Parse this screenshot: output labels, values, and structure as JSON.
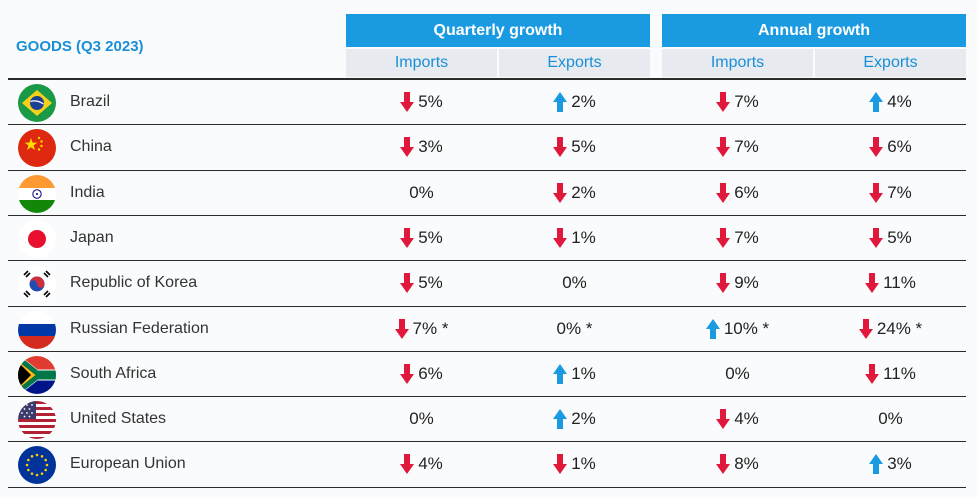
{
  "header": {
    "goods_label": "GOODS (Q3 2023)",
    "quarterly_label": "Quarterly growth",
    "annual_label": "Annual growth",
    "imports_label": "Imports",
    "exports_label": "Exports"
  },
  "colors": {
    "accent": "#1a9ae0",
    "down": "#e0183c",
    "up": "#1a9ae0",
    "subheader_bg": "#e7ebef"
  },
  "rows": [
    {
      "country": "Brazil",
      "flag": "brazil-flag",
      "q_imp": {
        "value": "5%",
        "dir": "down"
      },
      "q_exp": {
        "value": "2%",
        "dir": "up"
      },
      "a_imp": {
        "value": "7%",
        "dir": "down"
      },
      "a_exp": {
        "value": "4%",
        "dir": "up"
      }
    },
    {
      "country": "China",
      "flag": "china-flag",
      "q_imp": {
        "value": "3%",
        "dir": "down"
      },
      "q_exp": {
        "value": "5%",
        "dir": "down"
      },
      "a_imp": {
        "value": "7%",
        "dir": "down"
      },
      "a_exp": {
        "value": "6%",
        "dir": "down"
      }
    },
    {
      "country": "India",
      "flag": "india-flag",
      "q_imp": {
        "value": "0%",
        "dir": "none"
      },
      "q_exp": {
        "value": "2%",
        "dir": "down"
      },
      "a_imp": {
        "value": "6%",
        "dir": "down"
      },
      "a_exp": {
        "value": "7%",
        "dir": "down"
      }
    },
    {
      "country": "Japan",
      "flag": "japan-flag",
      "q_imp": {
        "value": "5%",
        "dir": "down"
      },
      "q_exp": {
        "value": "1%",
        "dir": "down"
      },
      "a_imp": {
        "value": "7%",
        "dir": "down"
      },
      "a_exp": {
        "value": "5%",
        "dir": "down"
      }
    },
    {
      "country": "Republic of Korea",
      "flag": "korea-flag",
      "q_imp": {
        "value": "5%",
        "dir": "down"
      },
      "q_exp": {
        "value": "0%",
        "dir": "none"
      },
      "a_imp": {
        "value": "9%",
        "dir": "down"
      },
      "a_exp": {
        "value": "11%",
        "dir": "down"
      }
    },
    {
      "country": "Russian Federation",
      "flag": "russia-flag",
      "q_imp": {
        "value": "7% *",
        "dir": "down"
      },
      "q_exp": {
        "value": "0% *",
        "dir": "none"
      },
      "a_imp": {
        "value": "10% *",
        "dir": "up"
      },
      "a_exp": {
        "value": "24% *",
        "dir": "down"
      }
    },
    {
      "country": "South Africa",
      "flag": "south-africa-flag",
      "q_imp": {
        "value": "6%",
        "dir": "down"
      },
      "q_exp": {
        "value": "1%",
        "dir": "up"
      },
      "a_imp": {
        "value": "0%",
        "dir": "none"
      },
      "a_exp": {
        "value": "11%",
        "dir": "down"
      }
    },
    {
      "country": "United States",
      "flag": "usa-flag",
      "q_imp": {
        "value": "0%",
        "dir": "none"
      },
      "q_exp": {
        "value": "2%",
        "dir": "up"
      },
      "a_imp": {
        "value": "4%",
        "dir": "down"
      },
      "a_exp": {
        "value": "0%",
        "dir": "none"
      }
    },
    {
      "country": "European Union",
      "flag": "eu-flag",
      "q_imp": {
        "value": "4%",
        "dir": "down"
      },
      "q_exp": {
        "value": "1%",
        "dir": "down"
      },
      "a_imp": {
        "value": "8%",
        "dir": "down"
      },
      "a_exp": {
        "value": "3%",
        "dir": "up"
      }
    }
  ]
}
